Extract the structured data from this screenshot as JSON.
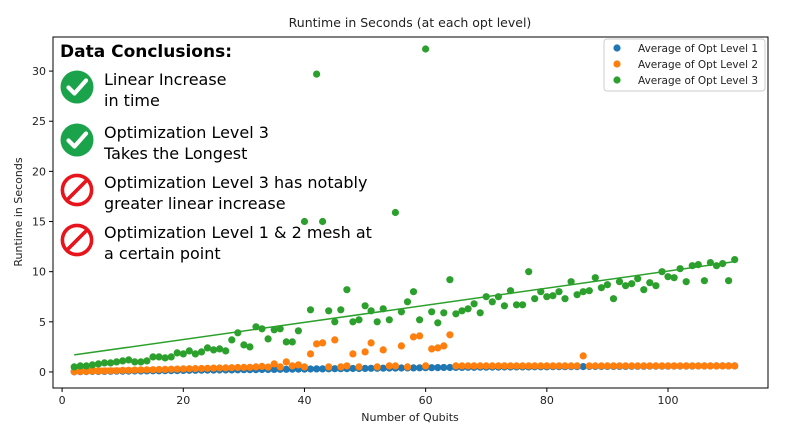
{
  "chart_data": {
    "type": "scatter",
    "title": "Runtime in Seconds (at each opt level)",
    "xlabel": "Number of Qubits",
    "ylabel": "Runtime in Seconds",
    "xlim": [
      -1.5,
      116.5
    ],
    "ylim": [
      -1.6,
      33.4
    ],
    "xticks": [
      0,
      20,
      40,
      60,
      80,
      100
    ],
    "yticks": [
      0,
      5,
      10,
      15,
      20,
      25,
      30
    ],
    "grid": false,
    "legend_position": "top-right",
    "series": [
      {
        "name": "Average of Opt Level 1",
        "color": "#1f77b4",
        "x": [
          2,
          3,
          4,
          5,
          6,
          7,
          8,
          9,
          10,
          11,
          12,
          13,
          14,
          15,
          16,
          17,
          18,
          19,
          20,
          21,
          22,
          23,
          24,
          25,
          26,
          27,
          28,
          29,
          30,
          31,
          32,
          33,
          34,
          35,
          36,
          37,
          38,
          39,
          40,
          41,
          42,
          43,
          44,
          45,
          46,
          47,
          48,
          49,
          50,
          51,
          52,
          53,
          54,
          55,
          56,
          57,
          58,
          59,
          60,
          61,
          62,
          63,
          64,
          65,
          66,
          67,
          68,
          69,
          70,
          71,
          72,
          73,
          74,
          75,
          76,
          77,
          78,
          79,
          80,
          81,
          82,
          83,
          84,
          85,
          86,
          87,
          88,
          89,
          90,
          91,
          92,
          93,
          94,
          95,
          96,
          97,
          98,
          99,
          100,
          101,
          102,
          103,
          104,
          105,
          106,
          107,
          108,
          109,
          110,
          111
        ],
        "y": [
          0.02,
          0.03,
          0.04,
          0.05,
          0.05,
          0.06,
          0.07,
          0.08,
          0.08,
          0.09,
          0.1,
          0.1,
          0.11,
          0.12,
          0.12,
          0.13,
          0.14,
          0.14,
          0.15,
          0.16,
          0.16,
          0.17,
          0.18,
          0.18,
          0.19,
          0.2,
          0.2,
          0.21,
          0.22,
          0.22,
          0.23,
          0.24,
          0.24,
          0.25,
          0.26,
          0.26,
          0.27,
          0.28,
          0.28,
          0.29,
          0.3,
          0.3,
          0.31,
          0.32,
          0.32,
          0.33,
          0.34,
          0.34,
          0.35,
          0.36,
          0.36,
          0.37,
          0.38,
          0.38,
          0.39,
          0.4,
          0.4,
          0.41,
          0.42,
          0.42,
          0.43,
          0.44,
          0.44,
          0.45,
          0.45,
          0.46,
          0.46,
          0.47,
          0.47,
          0.48,
          0.48,
          0.49,
          0.49,
          0.5,
          0.5,
          0.5,
          0.51,
          0.51,
          0.51,
          0.52,
          0.52,
          0.52,
          0.53,
          0.53,
          0.53,
          0.54,
          0.54,
          0.54,
          0.55,
          0.55,
          0.55,
          0.55,
          0.56,
          0.56,
          0.56,
          0.57,
          0.57,
          0.57,
          0.57,
          0.58,
          0.58,
          0.58,
          0.58,
          0.59,
          0.59,
          0.59,
          0.6,
          0.6,
          0.6,
          0.6
        ]
      },
      {
        "name": "Average of Opt Level 2",
        "color": "#ff7f0e",
        "x": [
          2,
          3,
          4,
          5,
          6,
          7,
          8,
          9,
          10,
          11,
          12,
          13,
          14,
          15,
          16,
          17,
          18,
          19,
          20,
          21,
          22,
          23,
          24,
          25,
          26,
          27,
          28,
          29,
          30,
          31,
          32,
          33,
          34,
          35,
          36,
          37,
          38,
          39,
          40,
          41,
          42,
          43,
          44,
          45,
          46,
          47,
          48,
          49,
          50,
          51,
          52,
          53,
          54,
          55,
          56,
          57,
          58,
          59,
          60,
          61,
          62,
          63,
          64,
          65,
          66,
          67,
          68,
          69,
          70,
          71,
          72,
          73,
          74,
          75,
          76,
          77,
          78,
          79,
          80,
          81,
          82,
          83,
          84,
          85,
          86,
          87,
          88,
          89,
          90,
          91,
          92,
          93,
          94,
          95,
          96,
          97,
          98,
          99,
          100,
          101,
          102,
          103,
          104,
          105,
          106,
          107,
          108,
          109,
          110,
          111
        ],
        "y": [
          0.03,
          0.05,
          0.06,
          0.08,
          0.09,
          0.1,
          0.12,
          0.13,
          0.15,
          0.16,
          0.18,
          0.2,
          0.21,
          0.22,
          0.24,
          0.25,
          0.27,
          0.28,
          0.3,
          0.32,
          0.33,
          0.34,
          0.36,
          0.38,
          0.39,
          0.4,
          0.42,
          0.44,
          0.45,
          0.46,
          0.5,
          0.55,
          0.48,
          0.8,
          0.5,
          1.0,
          0.6,
          0.7,
          0.5,
          1.8,
          2.8,
          2.9,
          0.5,
          3.2,
          0.5,
          0.6,
          1.8,
          0.5,
          2.0,
          2.9,
          0.5,
          2.2,
          0.6,
          0.6,
          2.6,
          0.5,
          3.5,
          3.6,
          0.6,
          2.3,
          2.4,
          2.6,
          3.7,
          0.6,
          0.6,
          0.6,
          0.6,
          0.6,
          0.6,
          0.6,
          0.6,
          0.6,
          0.6,
          0.6,
          0.6,
          0.6,
          0.6,
          0.6,
          0.6,
          0.6,
          0.6,
          0.6,
          0.6,
          0.6,
          1.6,
          0.6,
          0.6,
          0.6,
          0.6,
          0.6,
          0.6,
          0.6,
          0.6,
          0.6,
          0.6,
          0.6,
          0.6,
          0.6,
          0.6,
          0.6,
          0.6,
          0.6,
          0.6,
          0.6,
          0.6,
          0.6,
          0.6,
          0.6,
          0.6,
          0.6
        ]
      },
      {
        "name": "Average of Opt Level 3",
        "color": "#2ca02c",
        "x": [
          2,
          3,
          4,
          5,
          6,
          7,
          8,
          9,
          10,
          11,
          12,
          13,
          14,
          15,
          16,
          17,
          18,
          19,
          20,
          21,
          22,
          23,
          24,
          25,
          26,
          27,
          28,
          29,
          30,
          31,
          32,
          33,
          34,
          35,
          36,
          37,
          38,
          39,
          40,
          41,
          42,
          43,
          44,
          45,
          46,
          47,
          48,
          49,
          50,
          51,
          52,
          53,
          54,
          55,
          56,
          57,
          58,
          59,
          60,
          61,
          62,
          63,
          64,
          65,
          66,
          67,
          68,
          69,
          70,
          71,
          72,
          73,
          74,
          75,
          76,
          77,
          78,
          79,
          80,
          81,
          82,
          83,
          84,
          85,
          86,
          87,
          88,
          89,
          90,
          91,
          92,
          93,
          94,
          95,
          96,
          97,
          98,
          99,
          100,
          101,
          102,
          103,
          104,
          105,
          106,
          107,
          108,
          109,
          110,
          111
        ],
        "y": [
          0.5,
          0.6,
          0.6,
          0.7,
          0.8,
          0.9,
          0.9,
          1.0,
          1.1,
          1.2,
          1.0,
          1.0,
          1.1,
          1.5,
          1.5,
          1.4,
          1.5,
          1.9,
          1.8,
          2.1,
          1.8,
          2.0,
          2.4,
          2.2,
          2.3,
          2.1,
          3.2,
          3.9,
          2.7,
          2.5,
          4.5,
          4.3,
          3.3,
          4.2,
          4.3,
          3.0,
          3.0,
          4.1,
          15.0,
          6.2,
          29.7,
          15.0,
          6.1,
          5.0,
          6.2,
          8.2,
          5.0,
          5.2,
          6.6,
          6.1,
          5.0,
          6.3,
          5.2,
          15.9,
          6.0,
          7.0,
          8.0,
          5.2,
          32.2,
          6.0,
          4.9,
          5.9,
          9.2,
          5.8,
          6.1,
          6.3,
          6.8,
          5.9,
          7.5,
          7.0,
          7.5,
          6.6,
          8.1,
          6.7,
          6.7,
          10.0,
          7.3,
          8.0,
          7.5,
          7.6,
          8.0,
          7.3,
          9.0,
          7.7,
          8.0,
          8.1,
          9.4,
          8.4,
          8.7,
          7.3,
          9.0,
          8.6,
          8.8,
          9.3,
          8.2,
          8.9,
          8.6,
          10.0,
          9.5,
          9.4,
          10.3,
          9.0,
          10.6,
          10.7,
          9.1,
          10.9,
          10.6,
          10.8,
          9.1,
          11.2
        ]
      }
    ],
    "trendlines": [
      {
        "series": "Average of Opt Level 1",
        "color": "#1f77b4",
        "x": [
          2,
          111
        ],
        "y": [
          0.02,
          0.6
        ]
      },
      {
        "series": "Average of Opt Level 2",
        "color": "#ff7f0e",
        "x": [
          2,
          111
        ],
        "y": [
          0.35,
          0.65
        ]
      },
      {
        "series": "Average of Opt Level 3",
        "color": "#2ca02c",
        "x": [
          2,
          111
        ],
        "y": [
          1.7,
          11.0
        ]
      }
    ]
  },
  "panel": {
    "heading": "Data Conclusions:",
    "notes": [
      {
        "icon": "check-icon",
        "text": "Linear Increase\nin time",
        "color": "#1aa34a"
      },
      {
        "icon": "check-icon",
        "text": "Optimization Level 3\nTakes the Longest",
        "color": "#1aa34a"
      },
      {
        "icon": "prohibited-icon",
        "text": "Optimization Level 3 has notably\ngreater linear increase",
        "color": "#e8141b"
      },
      {
        "icon": "prohibited-icon",
        "text": "Optimization Level 1 & 2 mesh at\na certain point",
        "color": "#e8141b"
      }
    ]
  }
}
